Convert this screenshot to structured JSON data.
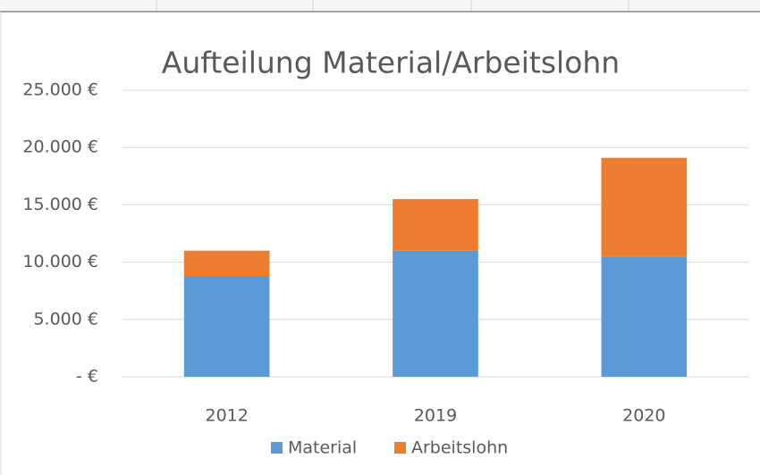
{
  "chart_data": {
    "type": "stacked_bar",
    "title": "Aufteilung Material/Arbeitslohn",
    "categories": [
      "2012",
      "2019",
      "2020"
    ],
    "series": [
      {
        "name": "Material",
        "color": "#5b9bd5",
        "values": [
          8800,
          11000,
          10500
        ]
      },
      {
        "name": "Arbeitslohn",
        "color": "#ed7d31",
        "values": [
          2200,
          4500,
          8600
        ]
      }
    ],
    "ylim": [
      0,
      25000
    ],
    "yticks": [
      {
        "value": 0,
        "label": "-   €"
      },
      {
        "value": 5000,
        "label": "5.000 €"
      },
      {
        "value": 10000,
        "label": "10.000 €"
      },
      {
        "value": 15000,
        "label": "15.000 €"
      },
      {
        "value": 20000,
        "label": "20.000 €"
      },
      {
        "value": 25000,
        "label": "25.000 €"
      }
    ],
    "grid": true,
    "legend": "bottom"
  }
}
